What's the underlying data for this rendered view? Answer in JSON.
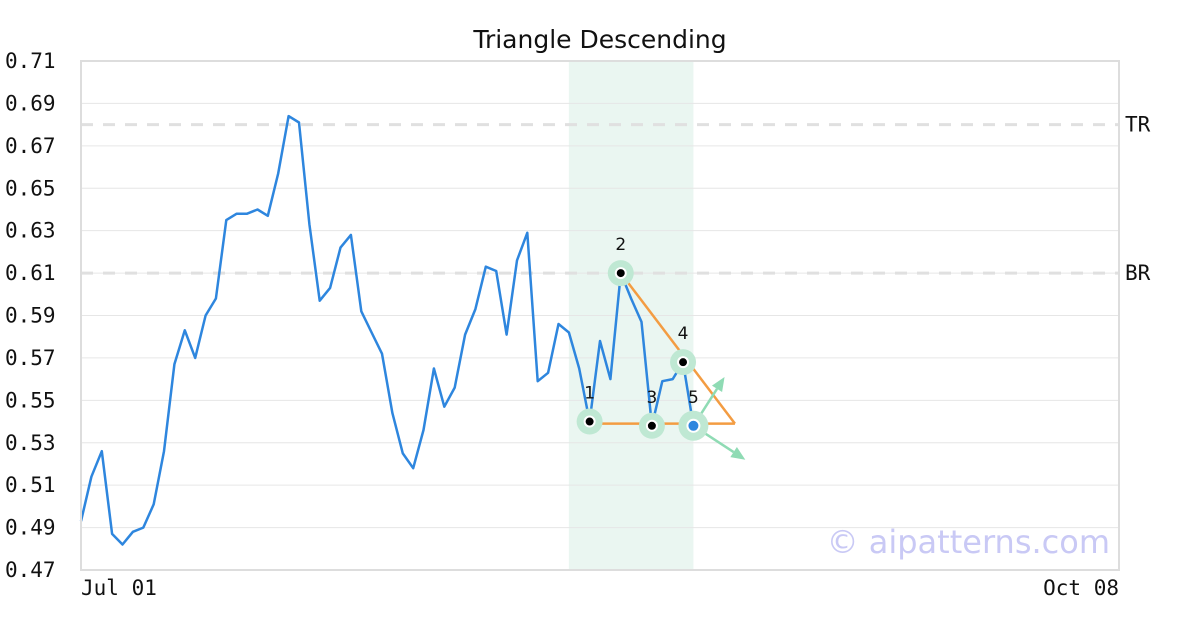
{
  "chart_data": {
    "type": "line",
    "title": "Triangle Descending",
    "xlabel": "",
    "ylabel": "",
    "x_tick_labels": [
      "Jul 01",
      "Oct 08"
    ],
    "y_ticks": [
      "0.71",
      "0.69",
      "0.67",
      "0.65",
      "0.63",
      "0.61",
      "0.59",
      "0.57",
      "0.55",
      "0.53",
      "0.51",
      "0.49",
      "0.47"
    ],
    "ylim": [
      0.47,
      0.71
    ],
    "xlim": [
      0,
      100
    ],
    "grid": true,
    "series": [
      {
        "color": "#2e86de",
        "values": [
          0.493,
          0.514,
          0.526,
          0.487,
          0.482,
          0.488,
          0.49,
          0.501,
          0.526,
          0.567,
          0.583,
          0.57,
          0.59,
          0.598,
          0.635,
          0.638,
          0.638,
          0.64,
          0.637,
          0.657,
          0.684,
          0.681,
          0.633,
          0.597,
          0.603,
          0.622,
          0.628,
          0.592,
          0.582,
          0.572,
          0.544,
          0.525,
          0.518,
          0.536,
          0.565,
          0.547,
          0.556,
          0.581,
          0.593,
          0.613,
          0.611,
          0.581,
          0.616,
          0.629,
          0.559,
          0.563,
          0.586,
          0.582,
          0.565,
          0.54,
          0.578,
          0.56,
          0.61,
          0.598,
          0.587,
          0.538,
          0.559,
          0.56,
          0.568,
          0.538
        ]
      }
    ],
    "pattern": {
      "name": "Triangle Descending",
      "highlight_range": [
        47,
        59
      ],
      "points": [
        {
          "label": "1",
          "x": 49,
          "y": 0.54
        },
        {
          "label": "2",
          "x": 52,
          "y": 0.61
        },
        {
          "label": "3",
          "x": 55,
          "y": 0.538
        },
        {
          "label": "4",
          "x": 58,
          "y": 0.568
        },
        {
          "label": "5",
          "x": 59,
          "y": 0.538
        }
      ],
      "upper_line": [
        {
          "x": 52,
          "y": 0.61
        },
        {
          "x": 63,
          "y": 0.539
        }
      ],
      "lower_line": [
        {
          "x": 49,
          "y": 0.539
        },
        {
          "x": 63,
          "y": 0.539
        }
      ],
      "breakout_up": {
        "x": 62,
        "y": 0.561
      },
      "breakout_down": {
        "x": 64,
        "y": 0.522
      },
      "levels": [
        {
          "label": "TR",
          "value": 0.68
        },
        {
          "label": "BR",
          "value": 0.61
        }
      ]
    },
    "colors": {
      "line": "#2e86de",
      "pattern_line": "#f39c42",
      "highlight": "#eaf6f1",
      "marker_halo": "#bfe8d3",
      "last_point": "#2e86de",
      "arrows": "#8fdbb4",
      "grid": "#e6e6e6",
      "level_line": "#e0e0e0"
    }
  },
  "watermark": "© aipatterns.com"
}
